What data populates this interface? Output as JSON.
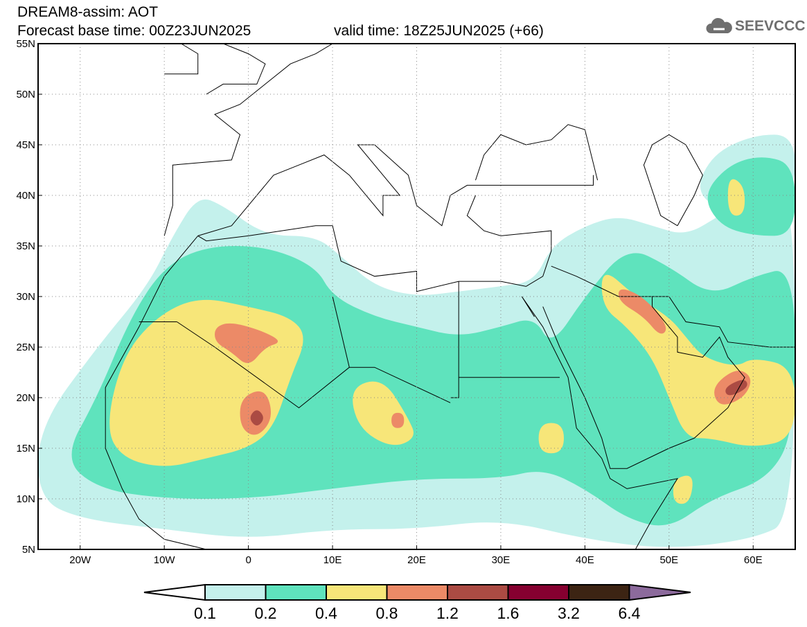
{
  "header": {
    "title": "DREAM8-assim: AOT",
    "base_time": "Forecast base time: 00Z23JUN2025",
    "valid_time": "valid time: 18Z25JUN2025 (+66)",
    "logo": "SEEVCCC"
  },
  "map": {
    "variable": "Aerosol optical thickness",
    "lat_labels": [
      "55N",
      "50N",
      "45N",
      "40N",
      "35N",
      "30N",
      "25N",
      "20N",
      "15N",
      "10N",
      "5N"
    ],
    "lon_labels": [
      "20W",
      "10W",
      "0",
      "10E",
      "20E",
      "30E",
      "40E",
      "50E",
      "60E"
    ],
    "lat_range": [
      5,
      55
    ],
    "lon_range": [
      -25,
      65
    ]
  },
  "colorbar": {
    "labels": [
      "0.1",
      "0.2",
      "0.4",
      "0.8",
      "1.2",
      "1.6",
      "3.2",
      "6.4"
    ],
    "colors": [
      "#ffffff",
      "#c4f1ec",
      "#5fe3bd",
      "#f7e679",
      "#ec8a67",
      "#ab4b43",
      "#860030",
      "#3c2413",
      "#8c6a9c"
    ]
  }
}
